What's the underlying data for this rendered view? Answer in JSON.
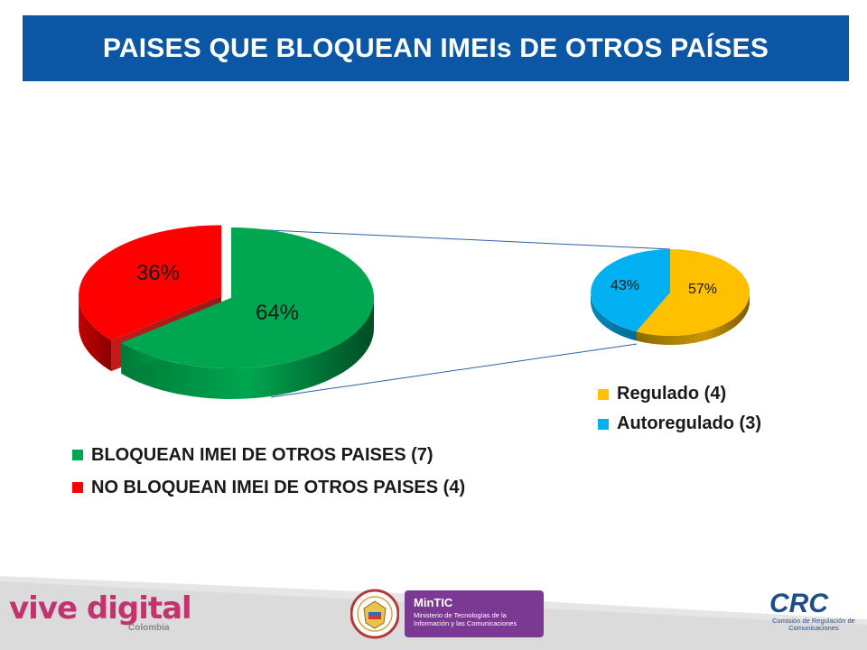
{
  "title": "PAISES QUE BLOQUEAN IMEIs DE OTROS PAÍSES",
  "chart_data": [
    {
      "type": "pie",
      "slices": [
        {
          "label": "BLOQUEAN IMEI DE OTROS PAISES (7)",
          "value": 64,
          "display": "64%",
          "color": "#00a650"
        },
        {
          "label": "NO BLOQUEAN IMEI DE OTROS PAISES (4)",
          "value": 36,
          "display": "36%",
          "color": "#ff0000"
        }
      ],
      "legend_position": "bottom-left"
    },
    {
      "type": "pie",
      "slices": [
        {
          "label": "Regulado (4)",
          "value": 57,
          "display": "57%",
          "color": "#ffc000"
        },
        {
          "label": "Autoregulado (3)",
          "value": 43,
          "display": "43%",
          "color": "#00b0f0"
        }
      ],
      "legend_position": "bottom-right"
    }
  ],
  "footer": {
    "vive_digital": "vive digital",
    "vive_digital_sub": "Colombia",
    "mintic_title": "MinTIC",
    "mintic_sub": "Ministerio de Tecnologías de la Información y las Comunicaciones",
    "crc_title": "CRC",
    "crc_sub": "Comisión de Regulación de Comunicaciones"
  }
}
